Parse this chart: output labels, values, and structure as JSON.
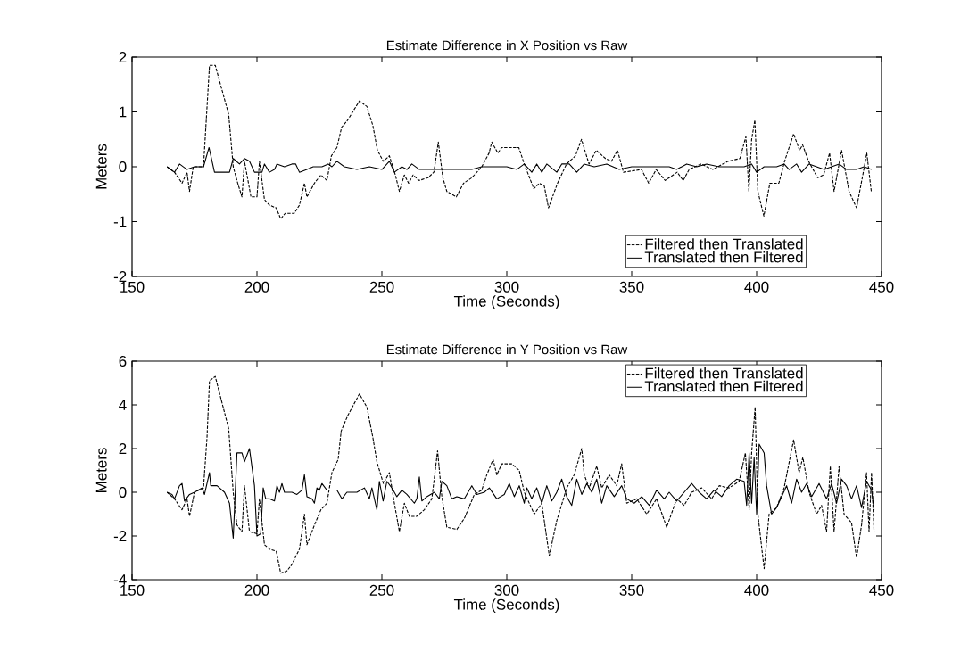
{
  "chart_data": [
    {
      "type": "line",
      "title": "Estimate Difference in  X Position vs Raw",
      "xlabel": "Time (Seconds)",
      "ylabel": "Meters",
      "xlim": [
        150,
        450
      ],
      "ylim": [
        -2,
        2
      ],
      "xticks": [
        150,
        200,
        250,
        300,
        350,
        400,
        450
      ],
      "yticks": [
        -2,
        -1,
        0,
        1,
        2
      ],
      "legend": "bottom right",
      "series": [
        {
          "name": "Filtered then Translated",
          "color": "#000000",
          "line_style": "dashed",
          "x": [
            164,
            167,
            170,
            172,
            173,
            174.5,
            178.6,
            181,
            183.3,
            188.7,
            190.5,
            192.3,
            194,
            195,
            197.6,
            200,
            201,
            203,
            205,
            207.7,
            209.5,
            211.3,
            214.9,
            217,
            219,
            220,
            223,
            225.6,
            228,
            229.8,
            232,
            233.9,
            236.3,
            241,
            244,
            246.4,
            248.2,
            250.6,
            253,
            255.4,
            257,
            259,
            260.7,
            262.5,
            264.9,
            268.5,
            270.8,
            272.6,
            274.4,
            276,
            279.8,
            282.7,
            286,
            290,
            292.9,
            294,
            296.4,
            298,
            304.8,
            307,
            310.8,
            313,
            315,
            316.7,
            320.3,
            323.9,
            327.5,
            329.9,
            332.9,
            335.8,
            339.5,
            341.9,
            344.3,
            346.7,
            353.9,
            356.8,
            359.8,
            363.4,
            368.2,
            370.6,
            373,
            377.8,
            382.5,
            388.5,
            393.3,
            395.7,
            396.9,
            398,
            399.3,
            400.5,
            402.9,
            405.3,
            408.9,
            411.2,
            414.8,
            417.2,
            418.4,
            420.8,
            424.4,
            426.8,
            429.2,
            431,
            434,
            437,
            440,
            442.3,
            444.1,
            445.9
          ],
          "values": [
            0,
            -0.1,
            -0.3,
            -0.1,
            -0.45,
            0,
            0,
            1.85,
            1.85,
            0.95,
            0,
            -0.3,
            -0.55,
            0.1,
            -0.55,
            -0.55,
            0.1,
            -0.6,
            -0.7,
            -0.75,
            -0.95,
            -0.85,
            -0.85,
            -0.7,
            -0.3,
            -0.55,
            -0.3,
            -0.15,
            -0.25,
            0.2,
            0.35,
            0.72,
            0.85,
            1.2,
            1.1,
            0.75,
            0.3,
            0.1,
            0.2,
            -0.15,
            -0.45,
            -0.15,
            -0.3,
            -0.15,
            -0.25,
            -0.2,
            -0.1,
            0.45,
            -0.2,
            -0.45,
            -0.55,
            -0.3,
            -0.2,
            0,
            0.25,
            0.45,
            0.25,
            0.35,
            0.35,
            0.05,
            -0.4,
            -0.3,
            -0.35,
            -0.75,
            -0.3,
            0.05,
            0.2,
            0.5,
            0.05,
            0.3,
            0.15,
            0.1,
            0.3,
            -0.1,
            -0.05,
            -0.3,
            -0.05,
            -0.25,
            -0.1,
            -0.25,
            -0.05,
            0.05,
            -0.05,
            0.1,
            0.15,
            0.55,
            -0.45,
            0.5,
            0.85,
            -0.45,
            -0.9,
            -0.3,
            -0.3,
            0.1,
            0.6,
            0.3,
            0.4,
            0.1,
            -0.2,
            -0.15,
            0.25,
            -0.45,
            0.3,
            -0.45,
            -0.75,
            -0.2,
            0.25,
            -0.45
          ]
        },
        {
          "name": "Translated then Filtered",
          "color": "#000000",
          "line_style": "solid",
          "x": [
            164,
            167,
            169,
            172,
            175,
            178.6,
            180.8,
            183,
            189,
            190.5,
            193,
            195,
            197,
            199,
            202,
            203,
            205,
            207,
            208,
            211,
            214,
            215.5,
            217,
            220,
            222.5,
            226,
            228.5,
            230,
            232,
            235,
            240,
            245,
            250,
            253,
            255,
            258,
            260,
            262,
            265,
            270,
            275,
            280,
            286,
            290,
            295,
            300,
            304,
            307,
            310,
            312,
            314,
            316,
            320,
            322,
            325,
            328,
            331,
            335,
            340,
            345,
            350,
            360,
            365,
            368,
            372,
            376,
            380,
            385,
            390,
            395,
            398,
            400,
            403,
            408,
            411,
            413,
            416,
            418,
            421,
            424,
            427,
            430,
            433,
            436,
            440,
            443,
            446
          ],
          "values": [
            0,
            -0.1,
            0.05,
            -0.05,
            0,
            0,
            0.35,
            -0.1,
            -0.1,
            0.15,
            0.05,
            0.15,
            0.1,
            -0.1,
            -0.1,
            0.05,
            -0.1,
            -0.05,
            0.05,
            0,
            0.05,
            0.05,
            -0.1,
            -0.05,
            0,
            0,
            0.05,
            0,
            0.1,
            0,
            -0.05,
            0,
            -0.05,
            0.1,
            -0.1,
            0,
            -0.05,
            0.05,
            -0.05,
            -0.05,
            -0.05,
            -0.05,
            -0.05,
            0,
            0,
            0,
            -0.05,
            0.05,
            -0.1,
            0.05,
            -0.1,
            0.05,
            -0.1,
            0.05,
            0.05,
            -0.1,
            0.05,
            0,
            0.05,
            -0.05,
            0,
            0,
            0,
            -0.05,
            0.05,
            0,
            0.05,
            0,
            0,
            0,
            0.05,
            -0.1,
            0,
            0,
            0.05,
            -0.05,
            0.05,
            -0.1,
            0.05,
            0,
            -0.05,
            0,
            0.05,
            -0.05,
            -0.05,
            0,
            -0.05
          ]
        }
      ]
    },
    {
      "type": "line",
      "title": "Estimate Difference in Y Position vs Raw",
      "xlabel": "Time (Seconds)",
      "ylabel": "Meters",
      "xlim": [
        150,
        450
      ],
      "ylim": [
        -4,
        6
      ],
      "xticks": [
        150,
        200,
        250,
        300,
        350,
        400,
        450
      ],
      "yticks": [
        -4,
        -2,
        0,
        2,
        4,
        6
      ],
      "legend": "top right",
      "series": [
        {
          "name": "Filtered then Translated",
          "color": "#000000",
          "line_style": "dashed",
          "x": [
            164,
            167,
            170,
            172,
            173,
            175,
            178.6,
            180,
            181,
            183.3,
            188.7,
            190.5,
            192,
            194,
            195,
            197,
            200,
            201,
            203,
            205,
            207.7,
            209.5,
            212,
            214,
            217,
            219,
            220,
            223,
            225.6,
            228,
            230,
            232.5,
            233.7,
            236.3,
            241,
            244,
            246.4,
            248,
            250.6,
            253,
            255,
            257,
            259,
            261,
            264,
            267,
            270,
            272.3,
            274,
            276,
            280,
            283,
            287,
            290,
            292,
            294.5,
            296,
            298,
            302,
            305,
            307,
            311,
            314,
            317,
            320,
            324,
            327,
            330,
            331,
            333,
            336,
            338,
            341,
            344,
            346,
            348,
            352,
            356,
            360,
            364,
            368,
            371,
            374,
            378,
            382,
            385,
            389,
            393,
            395.5,
            397,
            398,
            399.4,
            400.5,
            403,
            405,
            408,
            411,
            414.8,
            417,
            418.5,
            421,
            424,
            426,
            428,
            429.5,
            431,
            433,
            435,
            438,
            440,
            442,
            444,
            445,
            446,
            447
          ],
          "values": [
            0,
            -0.3,
            -0.8,
            -0.3,
            -1.1,
            0,
            0.2,
            2.5,
            5.1,
            5.3,
            2.9,
            0,
            -1.5,
            -1.8,
            0.3,
            -1.8,
            -1.9,
            -0.3,
            -2.4,
            -2.6,
            -2.7,
            -3.7,
            -3.6,
            -3.3,
            -2.6,
            -1.0,
            -2.4,
            -1.5,
            -0.8,
            -0.5,
            0.9,
            1.5,
            2.8,
            3.5,
            4.5,
            3.9,
            2.5,
            1.4,
            0.4,
            0.9,
            -0.5,
            -1.8,
            -0.5,
            -1.1,
            -1.1,
            -0.8,
            -0.3,
            1.9,
            -0.2,
            -1.6,
            -1.7,
            -1.2,
            -0.1,
            0.1,
            0.8,
            1.5,
            0.8,
            1.3,
            1.3,
            1.0,
            0,
            -1.0,
            -0.5,
            -2.9,
            -1.3,
            0.2,
            0.8,
            2.0,
            0.8,
            0.2,
            1.2,
            0.2,
            0.8,
            0.3,
            1.3,
            -0.5,
            -0.3,
            -1.0,
            -0.3,
            -1.6,
            -0.3,
            -0.6,
            0,
            0.2,
            -0.3,
            0.3,
            0.2,
            0.5,
            1.8,
            -0.8,
            1.8,
            3.9,
            -1.0,
            -3.5,
            -1.0,
            -0.7,
            0.2,
            2.4,
            0.9,
            1.6,
            0,
            -1.0,
            -0.6,
            -1.8,
            1.2,
            -1.8,
            1.2,
            -1.0,
            -1.4,
            -3.0,
            -1.5,
            0.9,
            -1.8,
            0.9,
            -1.8
          ]
        },
        {
          "name": "Translated then Filtered",
          "color": "#000000",
          "line_style": "solid",
          "x": [
            164,
            166,
            167,
            169,
            170,
            171,
            173,
            175,
            178,
            179,
            181,
            181.5,
            184,
            187,
            189,
            190.5,
            192,
            194,
            195,
            197,
            199,
            200,
            201.5,
            202.5,
            203.5,
            205,
            207,
            208,
            209,
            210,
            211,
            214,
            216,
            218,
            219,
            220,
            222,
            223,
            224,
            225,
            226,
            228,
            230,
            232,
            234,
            236,
            240,
            243,
            245,
            246,
            248,
            249,
            250.5,
            252,
            254,
            256,
            258,
            260,
            263,
            264,
            265,
            266,
            268,
            271,
            273,
            274,
            276,
            278,
            280,
            283,
            286,
            288,
            291,
            293,
            296,
            299,
            301,
            303,
            305,
            307,
            308,
            310,
            312,
            314,
            316,
            318,
            320,
            322,
            324,
            326,
            328,
            330,
            332,
            334,
            336,
            338,
            340,
            343,
            346,
            348,
            351,
            354,
            357,
            360,
            363,
            365,
            368,
            371,
            374,
            377,
            380,
            383,
            386,
            389,
            392,
            395,
            396,
            397,
            398,
            399,
            400,
            401,
            403,
            404,
            406,
            408,
            410,
            412,
            414,
            416,
            418,
            420,
            422,
            425,
            428,
            430,
            432,
            434,
            436,
            438,
            440,
            442,
            444,
            446,
            447
          ],
          "values": [
            0,
            -0.1,
            -0.3,
            0.3,
            0.4,
            -0.4,
            -0.1,
            0,
            0.2,
            -0.1,
            0.9,
            0.3,
            0.3,
            0,
            -0.5,
            -2.1,
            1.8,
            1.8,
            1.4,
            2.0,
            0.3,
            -2.0,
            -1.9,
            0.2,
            -0.3,
            -0.3,
            -0.4,
            0.3,
            0,
            0.4,
            0,
            0,
            -0.1,
            0.1,
            0.8,
            -0.2,
            -0.3,
            -0.5,
            0.2,
            0.1,
            0.4,
            0.1,
            0.1,
            0.1,
            -0.3,
            0,
            0,
            0.2,
            -0.3,
            0.2,
            -0.8,
            0.5,
            -0.4,
            0.5,
            0.2,
            -0.2,
            0.1,
            -0.1,
            -0.5,
            -0.3,
            0.7,
            -0.4,
            -0.2,
            0,
            -0.3,
            0.5,
            0.3,
            -0.3,
            -0.2,
            -0.3,
            0.3,
            -0.1,
            0,
            0.2,
            -0.3,
            -0.1,
            0.4,
            -0.2,
            0.3,
            -0.5,
            0.2,
            -0.3,
            0.2,
            -0.5,
            0.3,
            -0.4,
            0,
            0.6,
            -0.2,
            -0.6,
            0.6,
            -0.1,
            0.4,
            0,
            0.6,
            -0.5,
            0.3,
            -0.2,
            0.3,
            -0.3,
            -0.5,
            -0.2,
            -0.6,
            0.1,
            -0.3,
            0,
            -0.4,
            0,
            0.4,
            0,
            -0.3,
            0.1,
            -0.2,
            0.3,
            0.6,
            0.5,
            -0.6,
            1.8,
            -0.5,
            1.6,
            -1.0,
            2.2,
            1.8,
            0.3,
            -1.0,
            -0.7,
            -0.2,
            0.3,
            -0.5,
            0.6,
            0,
            0.4,
            -0.2,
            0.4,
            -0.3,
            0.4,
            -0.5,
            0.6,
            0.3,
            -0.3,
            0.3,
            -0.7,
            0.5,
            0.1,
            -0.8
          ]
        }
      ]
    }
  ]
}
